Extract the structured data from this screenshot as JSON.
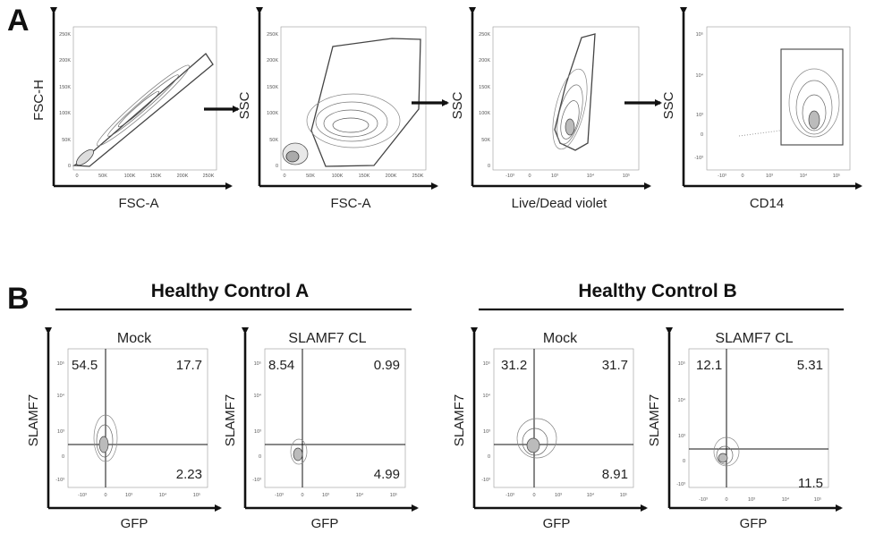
{
  "panel_a": {
    "letter": "A",
    "plots": [
      {
        "xlabel": "FSC-A",
        "ylabel": "FSC-H",
        "xticks": [
          "0",
          "50K",
          "100K",
          "150K",
          "200K",
          "250K"
        ],
        "yticks": [
          "0",
          "50K",
          "100K",
          "150K",
          "200K",
          "250K"
        ]
      },
      {
        "xlabel": "FSC-A",
        "ylabel": "SSC",
        "xticks": [
          "0",
          "50K",
          "100K",
          "150K",
          "200K",
          "250K"
        ],
        "yticks": [
          "0",
          "50K",
          "100K",
          "150K",
          "200K",
          "250K"
        ]
      },
      {
        "xlabel": "Live/Dead violet",
        "ylabel": "SSC",
        "xticks": [
          "-10³",
          "0",
          "10³",
          "10⁴",
          "10⁵"
        ],
        "yticks": [
          "0",
          "50K",
          "100K",
          "150K",
          "200K",
          "250K"
        ]
      },
      {
        "xlabel": "CD14",
        "ylabel": "SSC",
        "xticks": [
          "-10³",
          "0",
          "10³",
          "10⁴",
          "10⁵"
        ],
        "yticks": [
          "-10³",
          "0",
          "10³",
          "10⁴",
          "10⁵"
        ]
      }
    ]
  },
  "panel_b": {
    "letter": "B",
    "groups": [
      {
        "title": "Healthy Control A"
      },
      {
        "title": "Healthy Control B"
      }
    ],
    "plots": [
      {
        "title": "Mock",
        "xlabel": "GFP",
        "ylabel": "SLAMF7",
        "quadrants": {
          "ul": "54.5",
          "ur": "17.7",
          "lr": "2.23"
        }
      },
      {
        "title": "SLAMF7 CL",
        "xlabel": "GFP",
        "ylabel": "SLAMF7",
        "quadrants": {
          "ul": "8.54",
          "ur": "0.99",
          "lr": "4.99"
        }
      },
      {
        "title": "Mock",
        "xlabel": "GFP",
        "ylabel": "SLAMF7",
        "quadrants": {
          "ul": "31.2",
          "ur": "31.7",
          "lr": "8.91"
        }
      },
      {
        "title": "SLAMF7 CL",
        "xlabel": "GFP",
        "ylabel": "SLAMF7",
        "quadrants": {
          "ul": "12.1",
          "ur": "5.31",
          "lr": "11.5"
        }
      }
    ],
    "xticks": [
      "-10³",
      "0",
      "10³",
      "10⁴",
      "10⁵"
    ],
    "yticks": [
      "-10³",
      "0",
      "10³",
      "10⁴",
      "10⁵"
    ]
  }
}
